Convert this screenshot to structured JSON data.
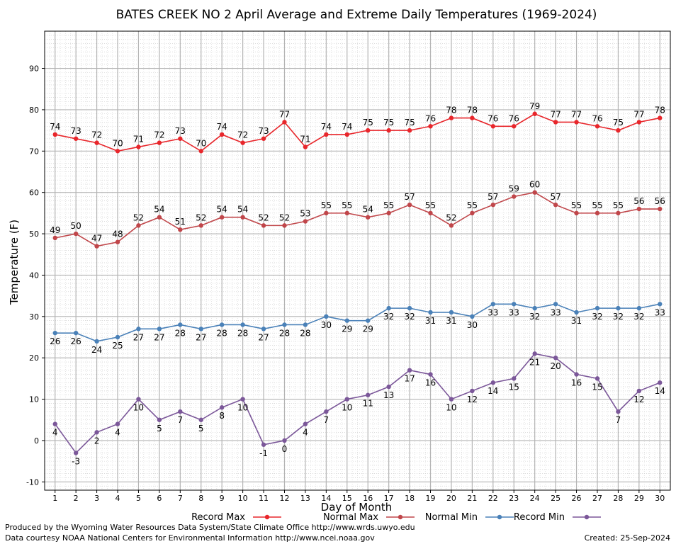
{
  "chart_data": {
    "type": "line",
    "title": "BATES CREEK NO 2 April Average and Extreme Daily Temperatures (1969-2024)",
    "xlabel": "Day of Month",
    "ylabel": "Temperature (F)",
    "ylim": [
      -12,
      99
    ],
    "xlim": [
      0.5,
      30.5
    ],
    "yticks": [
      -10,
      0,
      10,
      20,
      30,
      40,
      50,
      60,
      70,
      80,
      90
    ],
    "x": [
      1,
      2,
      3,
      4,
      5,
      6,
      7,
      8,
      9,
      10,
      11,
      12,
      13,
      14,
      15,
      16,
      17,
      18,
      19,
      20,
      21,
      22,
      23,
      24,
      25,
      26,
      27,
      28,
      29,
      30
    ],
    "grid": true,
    "legend_position": "bottom",
    "series": [
      {
        "name": "Record Max",
        "color": "#e8262b",
        "label_pos": "above",
        "values": [
          74,
          73,
          72,
          70,
          71,
          72,
          73,
          70,
          74,
          72,
          73,
          77,
          71,
          74,
          74,
          75,
          75,
          75,
          76,
          78,
          78,
          76,
          76,
          79,
          77,
          77,
          76,
          75,
          77,
          78
        ]
      },
      {
        "name": "Normal Max",
        "color": "#c0464a",
        "label_pos": "above",
        "values": [
          49,
          50,
          47,
          48,
          52,
          54,
          51,
          52,
          54,
          54,
          52,
          52,
          53,
          55,
          55,
          54,
          55,
          57,
          55,
          52,
          55,
          57,
          59,
          60,
          57,
          55,
          55,
          55,
          56,
          56
        ]
      },
      {
        "name": "Normal Min",
        "color": "#4a81b8",
        "label_pos": "below",
        "values": [
          26,
          26,
          24,
          25,
          27,
          27,
          28,
          27,
          28,
          28,
          27,
          28,
          28,
          30,
          29,
          29,
          32,
          32,
          31,
          31,
          30,
          33,
          33,
          32,
          33,
          31,
          32,
          32,
          32,
          33
        ]
      },
      {
        "name": "Record Min",
        "color": "#7b5799",
        "label_pos": "below",
        "values": [
          4,
          -3,
          2,
          4,
          10,
          5,
          7,
          5,
          8,
          10,
          -1,
          0,
          4,
          7,
          10,
          11,
          13,
          17,
          16,
          10,
          12,
          14,
          15,
          21,
          20,
          16,
          15,
          7,
          12,
          14
        ]
      }
    ]
  },
  "footer": {
    "produced_by": "Produced by the Wyoming Water Resources Data System/State Climate Office http://www.wrds.uwyo.edu",
    "courtesy": "Data courtesy NOAA National Centers for Environmental Information http://www.ncei.noaa.gov",
    "created": "Created: 25-Sep-2024"
  }
}
